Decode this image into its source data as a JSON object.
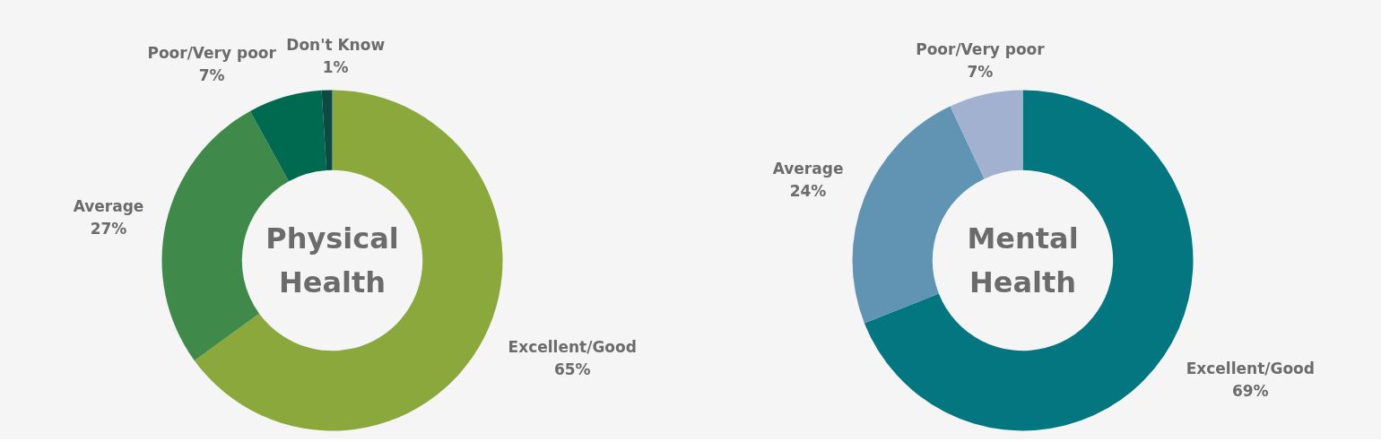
{
  "chart_data": [
    {
      "type": "donut",
      "title": "Physical Health",
      "categories": [
        "Excellent/Good",
        "Average",
        "Poor/Very poor",
        "Don't Know"
      ],
      "values": [
        65,
        27,
        7,
        1
      ],
      "colors": [
        "#8aa83c",
        "#3f8a4a",
        "#006a50",
        "#0d4a45"
      ],
      "value_labels": [
        "65%",
        "27%",
        "7%",
        "1%"
      ],
      "legend": false
    },
    {
      "type": "donut",
      "title": "Mental Health",
      "categories": [
        "Excellent/Good",
        "Average",
        "Poor/Very poor"
      ],
      "values": [
        69,
        24,
        7
      ],
      "colors": [
        "#037680",
        "#6094b2",
        "#a2b1d0"
      ],
      "value_labels": [
        "69%",
        "24%",
        "7%"
      ],
      "legend": false
    }
  ]
}
